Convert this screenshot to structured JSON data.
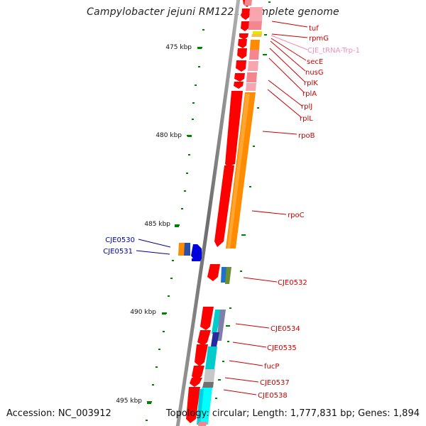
{
  "title": "Campylobacter jejuni RM1221, complete genome",
  "footer": {
    "accession": "Accession: NC_003912",
    "topology": "Topology: circular; Length: 1,777,831 bp; Genes: 1,894"
  },
  "scale": {
    "ticks": [
      "475 kbp",
      "480 kbp",
      "485 kbp",
      "490 kbp",
      "495 kbp"
    ]
  },
  "gene_labels": {
    "tuf": "tuf",
    "rpmG": "rpmG",
    "trna": "CJE_tRNA-Trp-1",
    "secE": "secE",
    "nusG": "nusG",
    "rplK": "rplK",
    "rplA": "rplA",
    "rplJ": "rplJ",
    "rplL": "rplL",
    "rpoB": "rpoB",
    "rpoC": "rpoC",
    "CJE0530": "CJE0530",
    "CJE0531": "CJE0531",
    "CJE0532": "CJE0532",
    "CJE0534": "CJE0534",
    "CJE0535": "CJE0535",
    "fucP": "fucP",
    "CJE0537": "CJE0537",
    "CJE0538": "CJE0538"
  },
  "colors": {
    "gene": "#ff0000",
    "gene_dark": "#b30000",
    "reverse_gene": "#0000dd",
    "trna": "#f08fb8",
    "label_forward": "#cc0000",
    "label_reverse": "#000099",
    "orange": "#ff8c00",
    "pink": "#f4868f",
    "cyan": "#00cccc",
    "gc_dots": "#008000"
  }
}
